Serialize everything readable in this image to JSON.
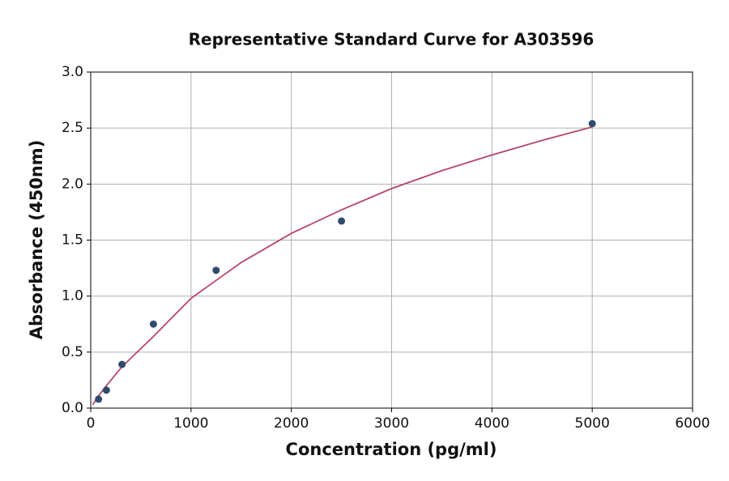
{
  "chart_data": {
    "type": "scatter",
    "title": "Representative Standard Curve for A303596",
    "x_label": "Concentration (pg/ml)",
    "y_label": "Absorbance (450nm)",
    "xlim": [
      0,
      6000
    ],
    "xticks": [
      0,
      1000,
      2000,
      3000,
      4000,
      5000,
      6000
    ],
    "ylim": [
      0,
      3
    ],
    "yticks": [
      {
        "value": 0,
        "label": "0.0"
      },
      0.5,
      {
        "value": 1,
        "label": "1.0"
      },
      1.5,
      {
        "value": 2,
        "label": "2.0"
      },
      2.5,
      {
        "value": 3,
        "label": "3.0"
      }
    ],
    "grid": true,
    "series": [
      {
        "type": "scatter",
        "color": "#2f4b6e",
        "x": [
          78,
          156,
          312,
          625,
          1250,
          2500,
          5000
        ],
        "values": [
          0.08,
          0.16,
          0.39,
          0.75,
          1.23,
          1.67,
          2.54
        ]
      },
      {
        "type": "line",
        "color": "#b5476a",
        "x": [
          20,
          78,
          156,
          312,
          625,
          1000,
          1500,
          2000,
          2500,
          3000,
          3500,
          4000,
          4500,
          5000
        ],
        "values": [
          0.03,
          0.11,
          0.2,
          0.37,
          0.64,
          0.98,
          1.3,
          1.56,
          1.77,
          1.96,
          2.12,
          2.26,
          2.39,
          2.51
        ]
      }
    ]
  }
}
